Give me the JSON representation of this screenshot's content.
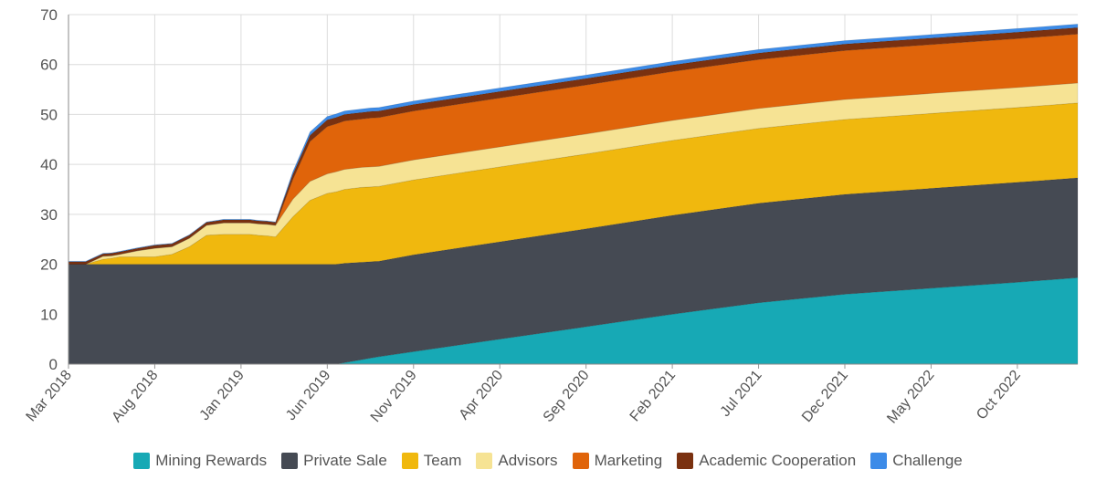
{
  "chart_data": {
    "type": "area",
    "stacked": true,
    "title": "",
    "xlabel": "",
    "ylabel": "",
    "ylim": [
      0,
      70
    ],
    "y_ticks": [
      "0",
      "10",
      "20",
      "30",
      "40",
      "50",
      "60",
      "70"
    ],
    "x_ticks": [
      "Mar 2018",
      "Aug 2018",
      "Jan 2019",
      "Jun 2019",
      "Nov 2019",
      "Apr 2020",
      "Sep 2020",
      "Feb 2021",
      "Jul 2021",
      "Dec 2021",
      "May 2022",
      "Oct 2022"
    ],
    "x_tick_months": [
      0,
      5,
      10,
      15,
      20,
      25,
      30,
      35,
      40,
      45,
      50,
      55
    ],
    "x_range_months": [
      0,
      58.5
    ],
    "grid": true,
    "legend_position": "bottom",
    "x_months": [
      0,
      1,
      1.5,
      2,
      2.5,
      3,
      4,
      5,
      6,
      7,
      8,
      9,
      10,
      10.5,
      11,
      11.5,
      12,
      13,
      14,
      15,
      15.5,
      16,
      16.5,
      17,
      17.5,
      18,
      20,
      25,
      30,
      35,
      40,
      45,
      50,
      55,
      58.5
    ],
    "series": [
      {
        "name": "Mining Rewards",
        "color": "#17A9B5",
        "values": [
          0,
          0,
          0,
          0,
          0,
          0,
          0,
          0,
          0,
          0,
          0,
          0,
          0,
          0,
          0,
          0,
          0,
          0,
          0,
          0,
          0,
          0.3,
          0.6,
          0.9,
          1.2,
          1.5,
          2.5,
          5.0,
          7.5,
          10.0,
          12.3,
          14.0,
          15.2,
          16.4,
          17.3
        ]
      },
      {
        "name": "Private Sale",
        "color": "#454A53",
        "values": [
          20,
          20,
          20,
          20,
          20,
          20,
          20,
          20,
          20,
          20,
          20,
          20,
          20,
          20,
          20,
          20,
          20,
          20,
          20,
          20,
          20,
          19.9,
          19.7,
          19.5,
          19.3,
          19.1,
          19.4,
          19.5,
          19.6,
          19.8,
          19.9,
          20.0,
          20.0,
          20.0,
          20.0
        ]
      },
      {
        "name": "Team",
        "color": "#F0B80E",
        "values": [
          0,
          0,
          0.5,
          1,
          1.2,
          1.5,
          1.5,
          1.5,
          2.0,
          3.5,
          5.8,
          6.0,
          6.0,
          6.0,
          5.8,
          5.7,
          5.5,
          9.5,
          12.8,
          14.2,
          14.5,
          14.8,
          14.9,
          15.0,
          15.0,
          15.0,
          15.0,
          15.0,
          15.0,
          15.0,
          15.0,
          15.0,
          15.0,
          15.0,
          15.0
        ]
      },
      {
        "name": "Advisors",
        "color": "#F6E394",
        "values": [
          0,
          0,
          0.3,
          0.6,
          0.5,
          0.5,
          1.2,
          1.7,
          1.5,
          1.7,
          2.0,
          2.3,
          2.3,
          2.3,
          2.3,
          2.3,
          2.3,
          3.5,
          3.8,
          3.9,
          4.0,
          4.0,
          4.0,
          4.0,
          4.0,
          4.0,
          4.0,
          4.0,
          4.0,
          4.0,
          4.0,
          4.0,
          4.0,
          4.0,
          4.0
        ]
      },
      {
        "name": "Marketing",
        "color": "#E0640A",
        "values": [
          0,
          0,
          0,
          0,
          0,
          0,
          0,
          0,
          0,
          0,
          0,
          0,
          0,
          0,
          0,
          0,
          0,
          4.0,
          8.0,
          9.5,
          9.6,
          9.7,
          9.7,
          9.7,
          9.8,
          9.8,
          9.8,
          9.8,
          9.8,
          9.8,
          9.8,
          9.8,
          9.8,
          9.8,
          9.8
        ]
      },
      {
        "name": "Academic Cooperation",
        "color": "#7A3110",
        "values": [
          0.5,
          0.5,
          0.5,
          0.5,
          0.5,
          0.5,
          0.5,
          0.6,
          0.6,
          0.6,
          0.6,
          0.6,
          0.6,
          0.6,
          0.6,
          0.6,
          0.6,
          1.0,
          1.2,
          1.3,
          1.3,
          1.3,
          1.3,
          1.3,
          1.3,
          1.3,
          1.3,
          1.3,
          1.3,
          1.3,
          1.3,
          1.3,
          1.3,
          1.3,
          1.3
        ]
      },
      {
        "name": "Challenge",
        "color": "#3C8BE8",
        "values": [
          0.1,
          0.1,
          0.1,
          0.1,
          0.1,
          0.1,
          0.1,
          0.1,
          0.1,
          0.1,
          0.1,
          0.1,
          0.1,
          0.1,
          0.1,
          0.1,
          0.1,
          0.5,
          0.7,
          0.7,
          0.7,
          0.7,
          0.7,
          0.7,
          0.7,
          0.7,
          0.7,
          0.7,
          0.7,
          0.7,
          0.7,
          0.7,
          0.7,
          0.7,
          0.7
        ]
      }
    ]
  }
}
